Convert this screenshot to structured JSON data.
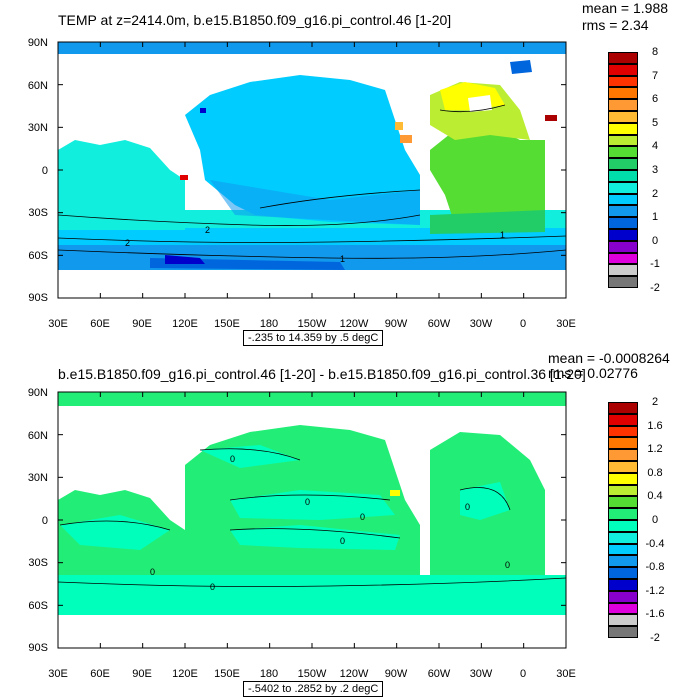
{
  "panels": [
    {
      "title": "TEMP at z=2414.0m, b.e15.B1850.f09_g16.pi_control.46 [1-20]",
      "mean": "mean = 1.988",
      "rms": "rms = 2.34",
      "range_label": "-.235 to 14.359 by .5 degC",
      "colorbar_labels": [
        "8",
        "7",
        "6",
        "5",
        "4",
        "3",
        "2",
        "1",
        "0",
        "-1",
        "-2"
      ],
      "colorbar_colors": [
        "#aa0000",
        "#e00000",
        "#ff3300",
        "#ff7700",
        "#ff9933",
        "#ffbb33",
        "#ffff00",
        "#bbee33",
        "#55dd33",
        "#22cc66",
        "#00ddaa",
        "#11eedd",
        "#00ccff",
        "#1199ee",
        "#0066dd",
        "#0000cc",
        "#8800cc",
        "#dd00dd",
        "#cccccc",
        "#777777"
      ],
      "contour_labels": [
        "2",
        "2",
        "1",
        "1"
      ]
    },
    {
      "title": "b.e15.B1850.f09_g16.pi_control.46 [1-20] - b.e15.B1850.f09_g16.pi_control.36 [1-20]",
      "mean": "mean = -0.0008264",
      "rms": "rms = 0.02776",
      "range_label": "-.5402 to .2852 by .2 degC",
      "colorbar_labels": [
        "2",
        "1.6",
        "1.2",
        "0.8",
        "0.4",
        "0",
        "-0.4",
        "-0.8",
        "-1.2",
        "-1.6",
        "-2"
      ],
      "colorbar_colors": [
        "#aa0000",
        "#e00000",
        "#ff3300",
        "#ff7700",
        "#ff9933",
        "#ffbb33",
        "#ffff00",
        "#bbee33",
        "#55dd33",
        "#22ee77",
        "#00ffbb",
        "#11eedd",
        "#00ccff",
        "#1199ee",
        "#0066dd",
        "#0000cc",
        "#8800cc",
        "#dd00dd",
        "#cccccc",
        "#777777"
      ],
      "contour_labels": [
        "0",
        "0",
        "0",
        "0",
        "0",
        "0",
        "0",
        "0"
      ]
    }
  ],
  "lat_labels": [
    "90N",
    "60N",
    "30N",
    "0",
    "30S",
    "60S",
    "90S"
  ],
  "lon_labels": [
    "30E",
    "60E",
    "90E",
    "120E",
    "150E",
    "180",
    "150W",
    "120W",
    "90W",
    "60W",
    "30W",
    "0",
    "30E"
  ]
}
